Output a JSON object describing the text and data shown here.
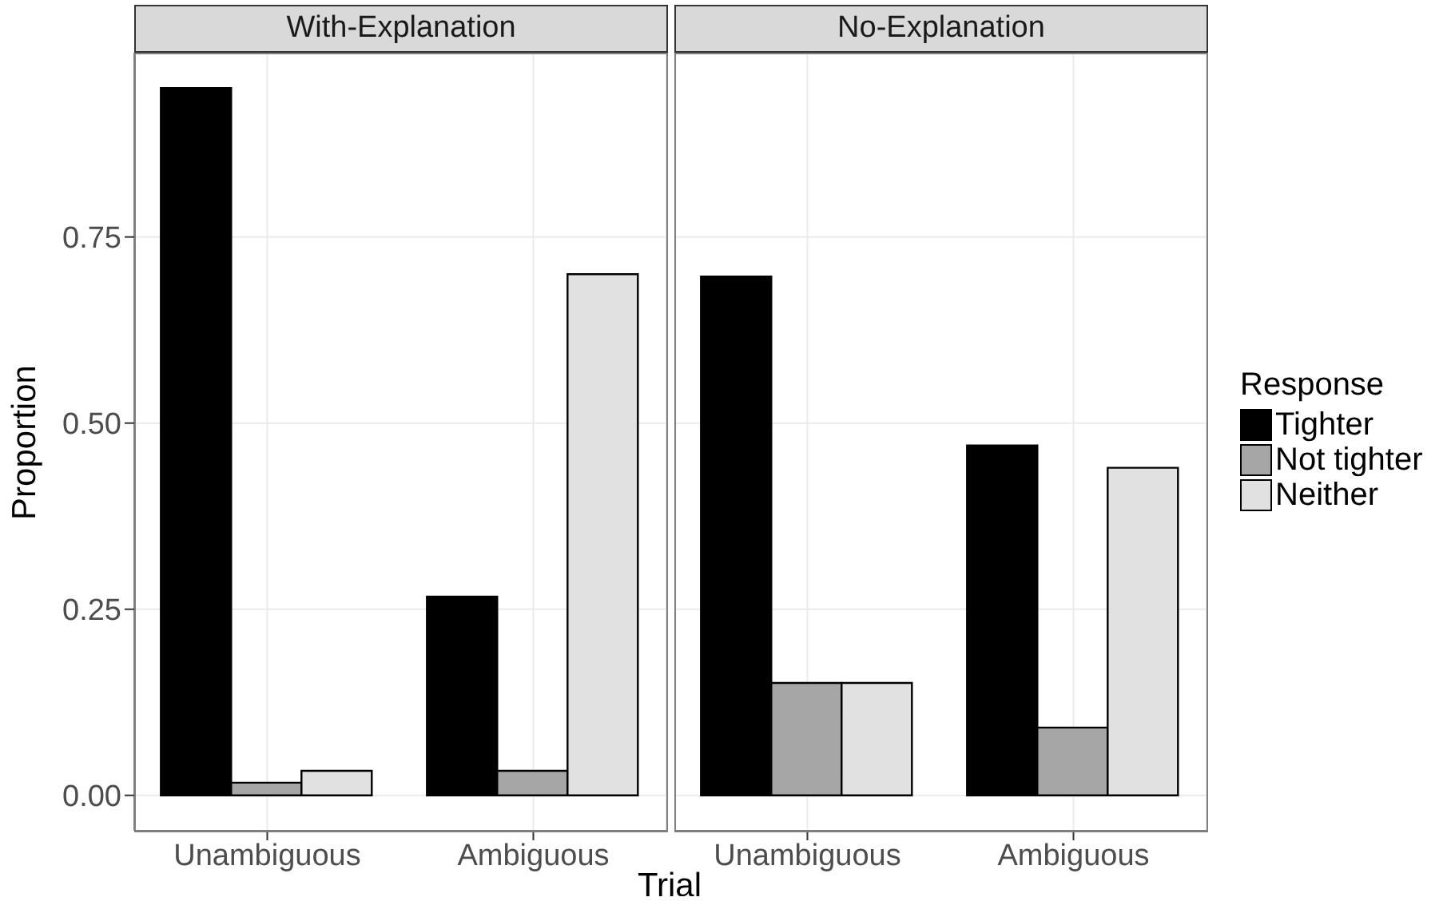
{
  "chart_data": [
    {
      "type": "bar",
      "title": "With-Explanation",
      "xlabel": "Trial",
      "ylabel": "Proportion",
      "categories": [
        "Unambiguous",
        "Ambiguous"
      ],
      "series": [
        {
          "name": "Tighter",
          "color": "#000000",
          "values": [
            0.95,
            0.267
          ]
        },
        {
          "name": "Not tighter",
          "color": "#a6a6a6",
          "values": [
            0.017,
            0.033
          ]
        },
        {
          "name": "Neither",
          "color": "#e1e1e1",
          "values": [
            0.033,
            0.7
          ]
        }
      ],
      "ylim": [
        -0.0475,
        0.9975
      ],
      "yticks": [
        {
          "value": 0,
          "label": "0.00"
        },
        {
          "value": 0.25,
          "label": "0.25"
        },
        {
          "value": 0.5,
          "label": "0.50"
        },
        {
          "value": 0.75,
          "label": "0.75"
        }
      ],
      "grid": true,
      "legend": "right",
      "legend_title": "Response"
    },
    {
      "type": "bar",
      "title": "No-Explanation",
      "categories": [
        "Unambiguous",
        "Ambiguous"
      ],
      "series": [
        {
          "color": "#000000",
          "values": [
            0.697,
            0.47
          ]
        },
        {
          "color": "#a6a6a6",
          "values": [
            0.151,
            0.091
          ]
        },
        {
          "color": "#e1e1e1",
          "values": [
            0.151,
            0.44
          ]
        }
      ],
      "ylim": [
        -0.0475,
        0.9975
      ],
      "yticks": [
        0,
        0.25,
        0.5,
        0.75
      ],
      "grid": true,
      "tick_labels": "x"
    }
  ]
}
